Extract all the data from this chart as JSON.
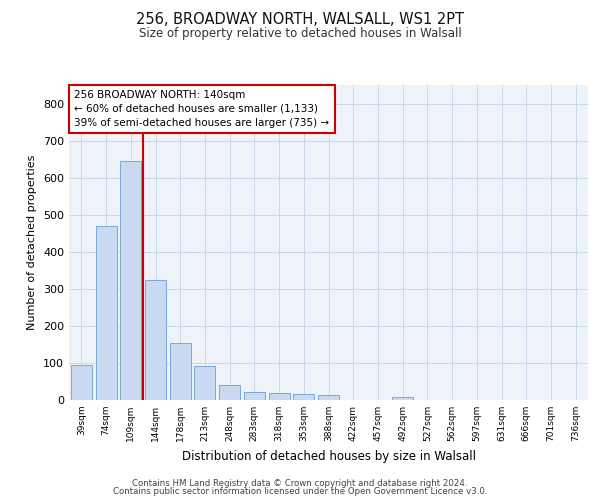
{
  "title": "256, BROADWAY NORTH, WALSALL, WS1 2PT",
  "subtitle": "Size of property relative to detached houses in Walsall",
  "xlabel": "Distribution of detached houses by size in Walsall",
  "ylabel": "Number of detached properties",
  "categories": [
    "39sqm",
    "74sqm",
    "109sqm",
    "144sqm",
    "178sqm",
    "213sqm",
    "248sqm",
    "283sqm",
    "318sqm",
    "353sqm",
    "388sqm",
    "422sqm",
    "457sqm",
    "492sqm",
    "527sqm",
    "562sqm",
    "597sqm",
    "631sqm",
    "666sqm",
    "701sqm",
    "736sqm"
  ],
  "values": [
    95,
    470,
    645,
    325,
    155,
    93,
    40,
    22,
    18,
    17,
    13,
    0,
    0,
    7,
    0,
    0,
    0,
    0,
    0,
    0,
    0
  ],
  "bar_color": "#c9d9f0",
  "bar_edge_color": "#6a9fd8",
  "grid_color": "#c8d8e8",
  "background_color": "#eef3fa",
  "vline_bin_index": 2,
  "annotation_text": "256 BROADWAY NORTH: 140sqm\n← 60% of detached houses are smaller (1,133)\n39% of semi-detached houses are larger (735) →",
  "annotation_box_color": "#ffffff",
  "annotation_box_edge_color": "#cc0000",
  "vline_color": "#cc0000",
  "footer_line1": "Contains HM Land Registry data © Crown copyright and database right 2024.",
  "footer_line2": "Contains public sector information licensed under the Open Government Licence v3.0.",
  "ylim": [
    0,
    850
  ],
  "yticks": [
    0,
    100,
    200,
    300,
    400,
    500,
    600,
    700,
    800
  ]
}
